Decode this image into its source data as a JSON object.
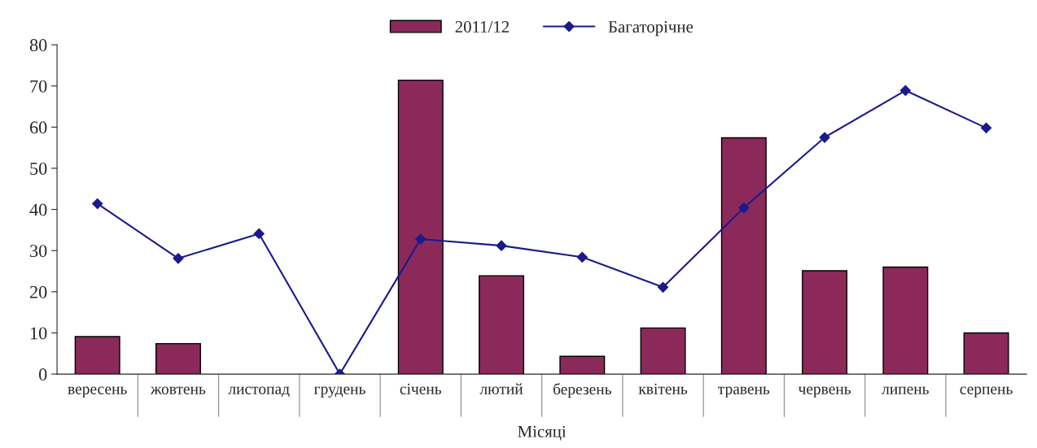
{
  "chart_data": {
    "type": "bar",
    "xlabel": "Місяці",
    "categories": [
      "вересень",
      "жовтень",
      "листопад",
      "грудень",
      "січень",
      "лютий",
      "березень",
      "квітень",
      "травень",
      "червень",
      "липень",
      "серпень"
    ],
    "series": [
      {
        "name": "2011/12",
        "color": "#8b2a5a",
        "values": [
          9.1,
          7.4,
          null,
          null,
          71.4,
          23.9,
          4.3,
          11.2,
          57.4,
          25.1,
          26.0,
          10.0
        ]
      },
      {
        "name": "Багаторічне",
        "type": "line",
        "color": "#1a1a8c",
        "marker": "diamond",
        "values": [
          41.4,
          28.1,
          34.1,
          0,
          32.8,
          31.2,
          28.4,
          21.1,
          40.4,
          57.5,
          68.9,
          59.8
        ]
      }
    ],
    "ylim": [
      0,
      80
    ],
    "yticks": [
      0,
      10,
      20,
      30,
      40,
      50,
      60,
      70,
      80
    ],
    "grid": false,
    "legend": "top"
  }
}
